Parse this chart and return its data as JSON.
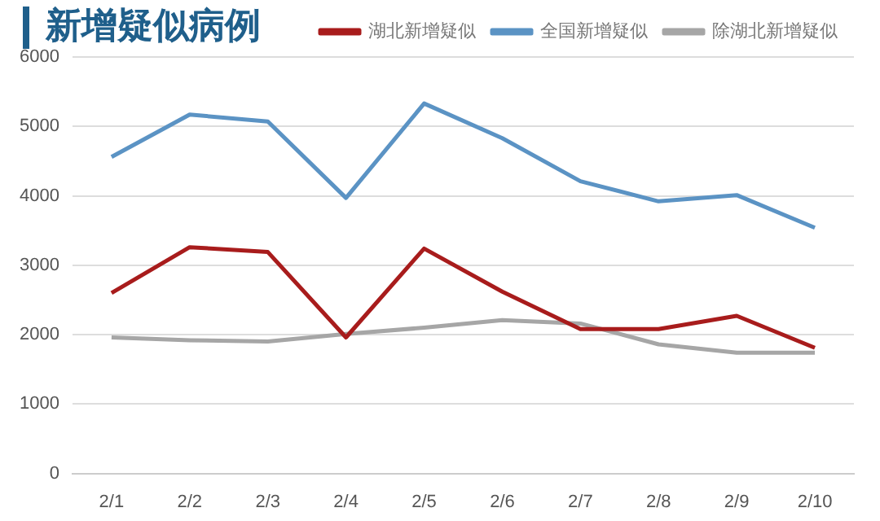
{
  "chart_data": {
    "type": "line",
    "title": "新增疑似病例",
    "categories": [
      "2/1",
      "2/2",
      "2/3",
      "2/4",
      "2/5",
      "2/6",
      "2/7",
      "2/8",
      "2/9",
      "2/10"
    ],
    "series": [
      {
        "name": "湖北新增疑似",
        "color": "#a81c1c",
        "values": [
          2600,
          3260,
          3190,
          1960,
          3240,
          2620,
          2080,
          2080,
          2270,
          1810
        ]
      },
      {
        "name": "全国新增疑似",
        "color": "#5b93c4",
        "values": [
          4560,
          5170,
          5070,
          3970,
          5330,
          4830,
          4210,
          3920,
          4010,
          3540
        ]
      },
      {
        "name": "除湖北新增疑似",
        "color": "#a6a6a6",
        "values": [
          1960,
          1920,
          1900,
          2010,
          2100,
          2210,
          2160,
          1860,
          1740,
          1740
        ]
      }
    ],
    "ylim": [
      0,
      6000
    ],
    "yticks": [
      0,
      1000,
      2000,
      3000,
      4000,
      5000,
      6000
    ],
    "grid": "y",
    "legend": "top right",
    "marker": "none",
    "line_style": "solid"
  }
}
